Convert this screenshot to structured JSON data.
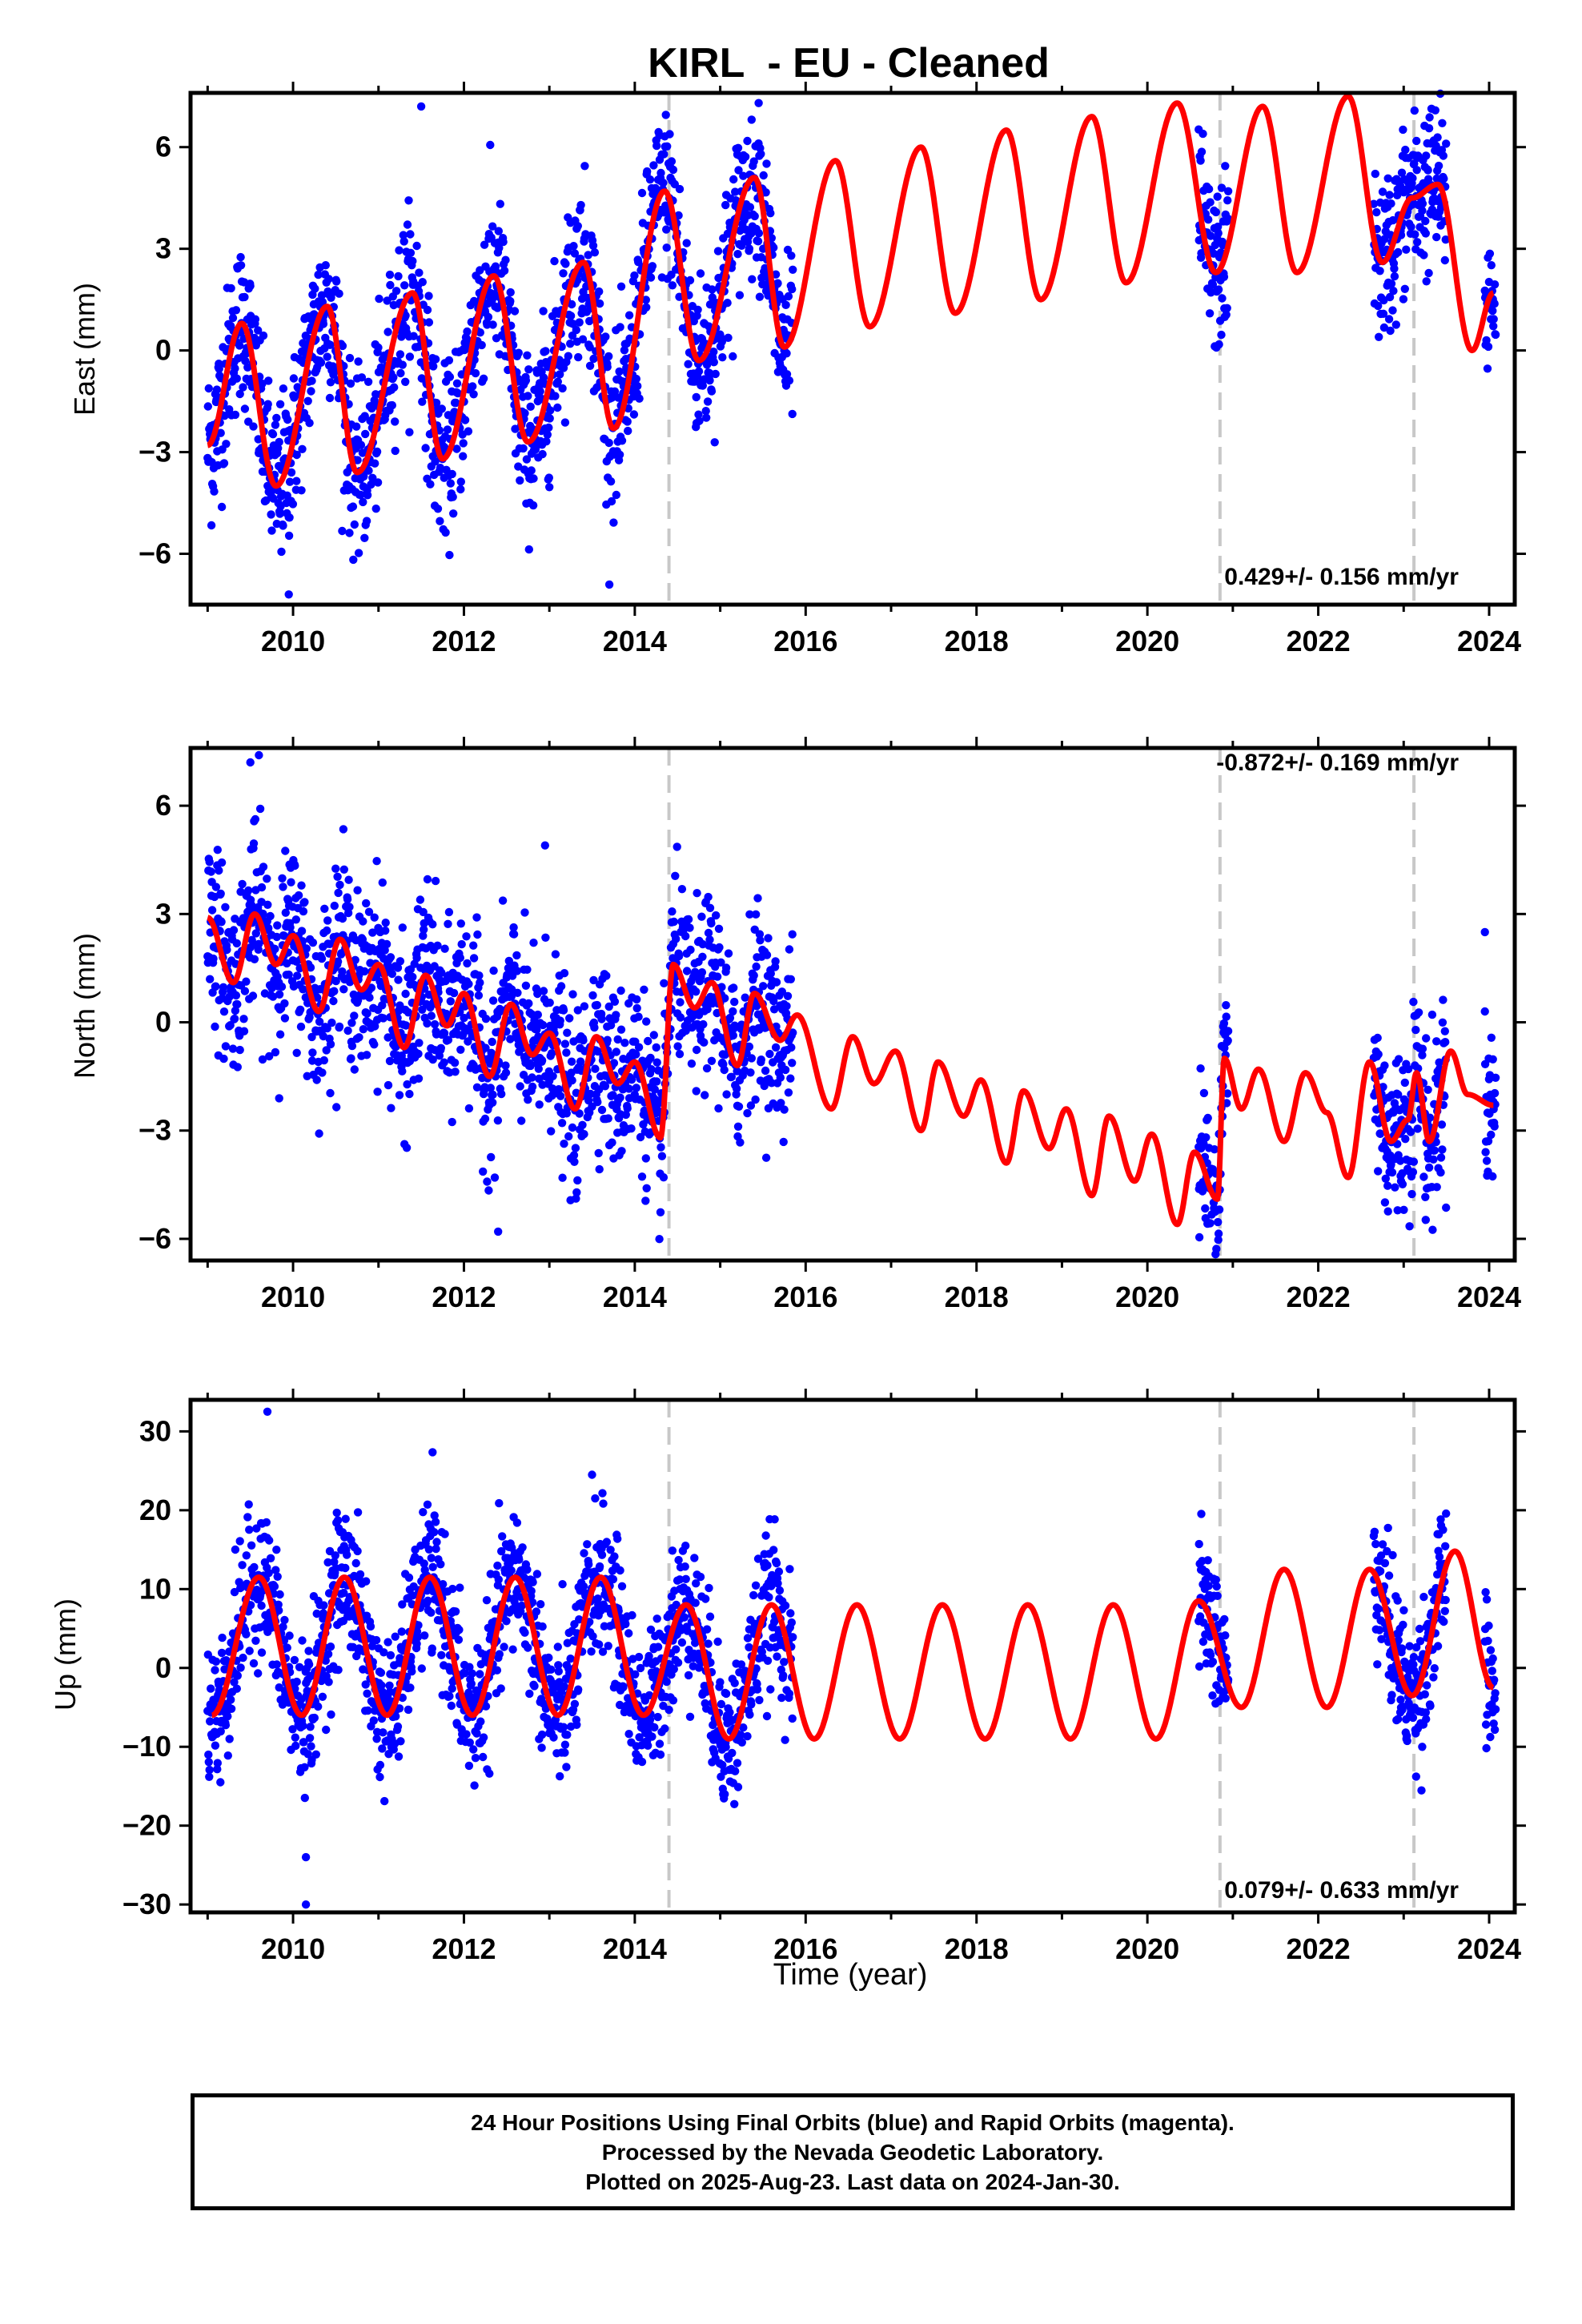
{
  "title": "KIRL  - EU - Cleaned",
  "colors": {
    "final_orbits": "#0000ff",
    "rapid_orbits": "#ff00ff",
    "model": "#ff0000",
    "offset_line": "#c8c8c8",
    "axis": "#000000"
  },
  "chart_data": [
    {
      "type": "scatter",
      "panel": "east",
      "ylabel": "East (mm)",
      "xlabel": "",
      "xlim": [
        2008.8,
        2024.3
      ],
      "ylim": [
        -7.5,
        7.6
      ],
      "xticks": [
        2010,
        2012,
        2014,
        2016,
        2018,
        2020,
        2022,
        2024
      ],
      "yticks": [
        -6,
        -3,
        0,
        3,
        6
      ],
      "grid": false,
      "rate_label": "0.429+/- 0.156 mm/yr",
      "rate_label_position": "bottom-right",
      "offset_epochs": [
        2014.4,
        2020.85,
        2023.12
      ],
      "model": {
        "name": "",
        "color": "#ff0000",
        "x": [
          2009.0,
          2009.4,
          2009.8,
          2010.4,
          2010.75,
          2011.4,
          2011.75,
          2012.35,
          2012.75,
          2013.4,
          2013.75,
          2014.35,
          2014.75,
          2015.4,
          2015.75,
          2016.35,
          2016.75,
          2017.35,
          2017.75,
          2018.35,
          2018.75,
          2019.35,
          2019.75,
          2020.35,
          2020.8,
          2021.35,
          2021.75,
          2022.35,
          2022.75,
          2023.1,
          2023.4,
          2023.8,
          2024.05
        ],
        "y": [
          -2.8,
          0.8,
          -4.0,
          1.3,
          -3.6,
          1.7,
          -3.2,
          2.2,
          -2.7,
          2.6,
          -2.3,
          4.7,
          -0.3,
          5.1,
          0.1,
          5.6,
          0.7,
          6.0,
          1.1,
          6.5,
          1.5,
          6.9,
          2.0,
          7.3,
          2.3,
          7.2,
          2.3,
          7.5,
          2.6,
          4.5,
          4.9,
          0.0,
          1.7
        ]
      },
      "scatter_segments": [
        {
          "start": 2009.0,
          "end": 2015.85
        },
        {
          "start": 2020.6,
          "end": 2020.95
        },
        {
          "start": 2022.65,
          "end": 2023.5
        },
        {
          "start": 2023.95,
          "end": 2024.08
        }
      ],
      "scatter_noise": 1.2,
      "scatter_outliers": [
        [
          2011.5,
          7.2
        ],
        [
          2009.95,
          -7.2
        ],
        [
          2015.45,
          7.3
        ]
      ]
    },
    {
      "type": "scatter",
      "panel": "north",
      "ylabel": "North (mm)",
      "xlabel": "",
      "xlim": [
        2008.8,
        2024.3
      ],
      "ylim": [
        -6.6,
        7.6
      ],
      "xticks": [
        2010,
        2012,
        2014,
        2016,
        2018,
        2020,
        2022,
        2024
      ],
      "yticks": [
        -6,
        -3,
        0,
        3,
        6
      ],
      "grid": false,
      "rate_label": "-0.872+/- 0.169 mm/yr",
      "rate_label_position": "top-right",
      "offset_epochs": [
        2014.4,
        2020.85,
        2023.12
      ],
      "model": {
        "name": "",
        "color": "#ff0000",
        "x": [
          2009.0,
          2009.3,
          2009.55,
          2009.8,
          2010.0,
          2010.3,
          2010.55,
          2010.8,
          2011.0,
          2011.3,
          2011.55,
          2011.8,
          2012.0,
          2012.3,
          2012.55,
          2012.8,
          2013.0,
          2013.3,
          2013.55,
          2013.8,
          2014.0,
          2014.3,
          2014.45,
          2014.7,
          2014.9,
          2015.2,
          2015.4,
          2015.7,
          2015.9,
          2016.3,
          2016.55,
          2016.8,
          2017.05,
          2017.35,
          2017.55,
          2017.85,
          2018.05,
          2018.35,
          2018.55,
          2018.85,
          2019.05,
          2019.35,
          2019.55,
          2019.85,
          2020.05,
          2020.35,
          2020.55,
          2020.82,
          2020.9,
          2021.1,
          2021.3,
          2021.6,
          2021.85,
          2022.1,
          2022.35,
          2022.6,
          2022.85,
          2023.05,
          2023.15,
          2023.3,
          2023.55,
          2023.75,
          2024.05
        ],
        "y": [
          2.9,
          1.1,
          3.0,
          1.6,
          2.4,
          0.3,
          2.3,
          0.9,
          1.6,
          -0.7,
          1.3,
          -0.1,
          0.8,
          -1.5,
          0.5,
          -0.9,
          -0.3,
          -2.4,
          -0.4,
          -1.7,
          -1.1,
          -3.2,
          1.6,
          0.4,
          1.1,
          -1.2,
          0.8,
          -0.5,
          0.2,
          -2.4,
          -0.4,
          -1.7,
          -0.8,
          -3.0,
          -1.1,
          -2.6,
          -1.6,
          -3.9,
          -1.9,
          -3.5,
          -2.4,
          -4.8,
          -2.6,
          -4.4,
          -3.1,
          -5.6,
          -3.6,
          -4.9,
          -1.0,
          -2.4,
          -1.3,
          -3.3,
          -1.4,
          -2.5,
          -4.3,
          -1.1,
          -3.3,
          -2.7,
          -1.4,
          -3.3,
          -0.8,
          -2.0,
          -2.3
        ]
      },
      "scatter_segments": [
        {
          "start": 2009.0,
          "end": 2015.85
        },
        {
          "start": 2020.6,
          "end": 2020.95
        },
        {
          "start": 2022.65,
          "end": 2023.5
        },
        {
          "start": 2023.95,
          "end": 2024.08
        }
      ],
      "scatter_noise": 1.2,
      "scatter_outliers": [
        [
          2009.6,
          7.4
        ],
        [
          2009.5,
          7.2
        ],
        [
          2012.95,
          4.9
        ],
        [
          2023.95,
          2.5
        ],
        [
          2012.4,
          -5.8
        ]
      ]
    },
    {
      "type": "scatter",
      "panel": "up",
      "ylabel": "Up (mm)",
      "xlabel": "Time (year)",
      "xlim": [
        2008.8,
        2024.3
      ],
      "ylim": [
        -31,
        34
      ],
      "xticks": [
        2010,
        2012,
        2014,
        2016,
        2018,
        2020,
        2022,
        2024
      ],
      "yticks": [
        -30,
        -20,
        -10,
        0,
        10,
        20,
        30
      ],
      "grid": false,
      "rate_label": "0.079+/- 0.633 mm/yr",
      "rate_label_position": "bottom-right",
      "offset_epochs": [
        2014.4,
        2020.85,
        2023.12
      ],
      "model": {
        "name": "",
        "color": "#ff0000",
        "x": [
          2009.05,
          2009.6,
          2010.1,
          2010.6,
          2011.1,
          2011.6,
          2012.1,
          2012.6,
          2013.1,
          2013.6,
          2014.1,
          2014.6,
          2015.1,
          2015.6,
          2016.1,
          2016.6,
          2017.1,
          2017.6,
          2018.1,
          2018.6,
          2019.1,
          2019.6,
          2020.1,
          2020.6,
          2021.1,
          2021.6,
          2022.1,
          2022.6,
          2023.1,
          2023.6,
          2024.05
        ],
        "y": [
          -6.0,
          11.5,
          -6.0,
          11.5,
          -6.0,
          11.5,
          -6.0,
          11.5,
          -6.0,
          11.5,
          -6.0,
          8.0,
          -9.0,
          8.0,
          -9.0,
          8.0,
          -9.0,
          8.0,
          -9.0,
          8.0,
          -9.0,
          8.0,
          -9.0,
          8.5,
          -5.0,
          12.5,
          -5.0,
          12.5,
          -3.5,
          14.8,
          -2.5
        ]
      },
      "scatter_segments": [
        {
          "start": 2009.0,
          "end": 2015.85
        },
        {
          "start": 2020.6,
          "end": 2020.95
        },
        {
          "start": 2022.65,
          "end": 2023.5
        },
        {
          "start": 2023.95,
          "end": 2024.08
        }
      ],
      "scatter_noise": 4.5,
      "scatter_outliers": [
        [
          2009.7,
          32.5
        ],
        [
          2010.15,
          -30.0
        ],
        [
          2013.5,
          24.5
        ],
        [
          2010.15,
          -24.0
        ],
        [
          2009.15,
          -14.5
        ]
      ]
    }
  ],
  "footer": {
    "line1": "24 Hour Positions Using Final Orbits (blue) and Rapid Orbits (magenta).",
    "line2": "Processed by the Nevada Geodetic Laboratory.",
    "line3": "Plotted on 2025-Aug-23. Last data on 2024-Jan-30."
  }
}
